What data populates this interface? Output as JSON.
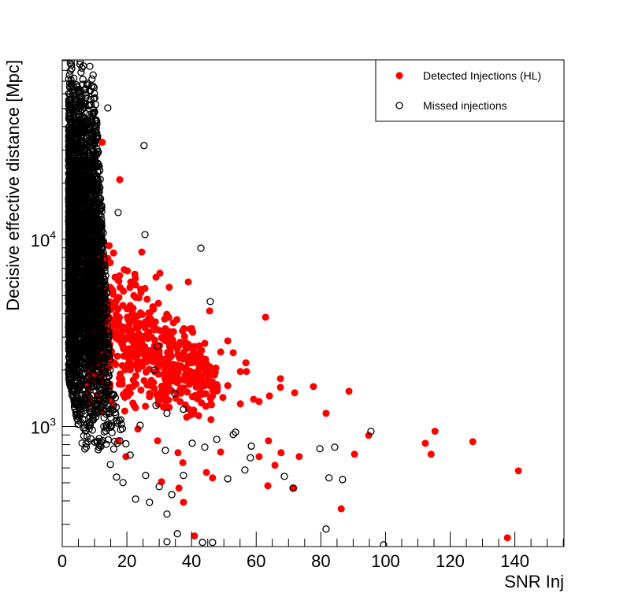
{
  "chart_data": {
    "type": "scatter",
    "title": "",
    "xlabel": "SNR Inj",
    "ylabel": "Decisive effective distance [Mpc]",
    "xlim": [
      0,
      155.2
    ],
    "ylim": [
      228,
      91000
    ],
    "yscale": "log",
    "grid": false,
    "legend_position": "top-right",
    "x_tick_labels": [
      "0",
      "20",
      "40",
      "60",
      "80",
      "100",
      "120",
      "140"
    ],
    "x_ticks": [
      0,
      20,
      40,
      60,
      80,
      100,
      120,
      140
    ],
    "y_tick_labels": [
      {
        "base": "10",
        "exp": "3",
        "value": 1000
      },
      {
        "base": "10",
        "exp": "4",
        "value": 10000
      }
    ],
    "series": [
      {
        "name": "Detected Injections (HL)",
        "marker": "filled-circle",
        "color": "#ff0000",
        "dense_cluster": {
          "count": 750,
          "x_range": [
            8,
            48
          ],
          "log10y_range": [
            3.05,
            4.25
          ],
          "note_density": "approximate dense region"
        },
        "points": [
          [
            137.7,
            254
          ],
          [
            141.1,
            579
          ],
          [
            127,
            829
          ],
          [
            115.3,
            942
          ],
          [
            114.1,
            710
          ],
          [
            112.3,
            813
          ],
          [
            94.8,
            896
          ],
          [
            90.4,
            710
          ],
          [
            88.7,
            1542
          ],
          [
            86.3,
            363
          ],
          [
            81.6,
            1175
          ],
          [
            77.7,
            1633
          ],
          [
            73.3,
            690
          ],
          [
            71.9,
            1513
          ],
          [
            71.6,
            468
          ],
          [
            67.7,
            724
          ],
          [
            67.5,
            1800
          ],
          [
            67.5,
            1618
          ],
          [
            64.1,
            1455
          ],
          [
            63.8,
            838
          ],
          [
            63.6,
            482
          ],
          [
            62.9,
            3835
          ],
          [
            65.8,
            620
          ],
          [
            60.9,
            690
          ],
          [
            60.9,
            1359
          ],
          [
            59.2,
            1397
          ],
          [
            57,
            1965
          ],
          [
            56.8,
            2190
          ],
          [
            55.1,
            1320
          ],
          [
            55.1,
            1965
          ],
          [
            52.9,
            2478
          ],
          [
            51.2,
            2865
          ],
          [
            51.2,
            1652
          ],
          [
            49.7,
            1428
          ],
          [
            48,
            1618
          ],
          [
            49,
            730
          ],
          [
            46,
            1088
          ],
          [
            46.5,
            531
          ],
          [
            44.6,
            568
          ],
          [
            40.9,
            260
          ],
          [
            42.2,
            1142
          ],
          [
            45.6,
            4140
          ],
          [
            44.6,
            2165
          ],
          [
            39,
            5920
          ],
          [
            37.5,
            393
          ],
          [
            36.1,
            468
          ],
          [
            37.3,
            640
          ],
          [
            35.8,
            724
          ],
          [
            38.5,
            1120
          ],
          [
            30.7,
            506
          ],
          [
            33.1,
            5540
          ],
          [
            30.2,
            6590
          ],
          [
            29,
            6270
          ],
          [
            24.6,
            8550
          ],
          [
            17.8,
            20840
          ],
          [
            12.4,
            33000
          ],
          [
            22.7,
            5700
          ],
          [
            24.6,
            3510
          ],
          [
            22.9,
            2315
          ],
          [
            18.5,
            1680
          ],
          [
            23.4,
            968
          ],
          [
            27.8,
            1680
          ],
          [
            34.4,
            3580
          ],
          [
            39.5,
            3320
          ],
          [
            44.1,
            2780
          ],
          [
            49,
            2500
          ],
          [
            17.3,
            838
          ],
          [
            19.7,
            690
          ],
          [
            29.5,
            838
          ],
          [
            35.6,
            1500
          ],
          [
            31.9,
            2000
          ],
          [
            27,
            1500
          ]
        ]
      },
      {
        "name": "Missed injections",
        "marker": "open-circle",
        "color": "#000000",
        "dense_cluster": {
          "count": 3200,
          "x_range": [
            2,
            16
          ],
          "log10y_range": [
            2.83,
            4.97
          ],
          "note_density": "approximate dense region"
        },
        "points": [
          [
            25.3,
            31700
          ],
          [
            14.1,
            50400
          ],
          [
            42.9,
            8970
          ],
          [
            45.8,
            4650
          ],
          [
            25.6,
            10600
          ],
          [
            95.5,
            942
          ],
          [
            84.3,
            775
          ],
          [
            79.7,
            760
          ],
          [
            82.5,
            531
          ],
          [
            86.7,
            520
          ],
          [
            81.6,
            283
          ],
          [
            99.4,
            233
          ],
          [
            71.4,
            468
          ],
          [
            68.7,
            541
          ],
          [
            58.5,
            785
          ],
          [
            58.2,
            680
          ],
          [
            56.5,
            585
          ],
          [
            51.2,
            525
          ],
          [
            53.6,
            931
          ],
          [
            52.9,
            905
          ],
          [
            32.4,
            242
          ],
          [
            35.6,
            267
          ],
          [
            43.4,
            240
          ],
          [
            46.5,
            240
          ],
          [
            32.4,
            340
          ],
          [
            33.9,
            432
          ],
          [
            37.5,
            547
          ],
          [
            30,
            477
          ],
          [
            27,
            393
          ],
          [
            22.7,
            409
          ],
          [
            18.8,
            501
          ],
          [
            14.9,
            626
          ],
          [
            16.8,
            536
          ],
          [
            25.8,
            547
          ],
          [
            31.9,
            745
          ],
          [
            21,
            703
          ],
          [
            44.1,
            775
          ],
          [
            47.8,
            853
          ],
          [
            40.2,
            813
          ],
          [
            37.5,
            1235
          ],
          [
            34.8,
            1500
          ],
          [
            32.4,
            1175
          ],
          [
            29,
            1295
          ],
          [
            24.1,
            1015
          ],
          [
            28.5,
            2000
          ],
          [
            17.8,
            838
          ],
          [
            29.5,
            2680
          ],
          [
            17.3,
            13900
          ]
        ]
      }
    ]
  }
}
